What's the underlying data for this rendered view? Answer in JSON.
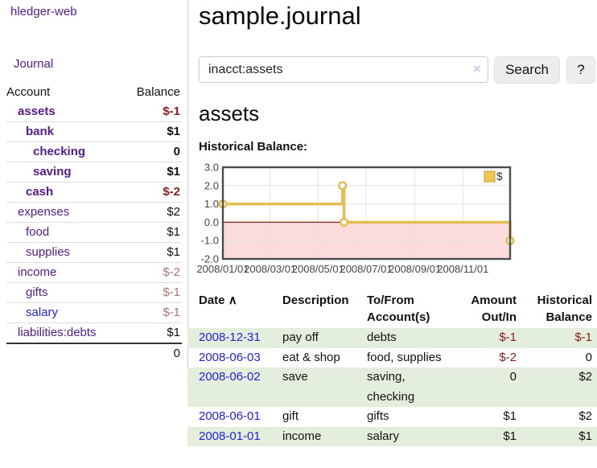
{
  "app": {
    "brand": "hledger-web",
    "nav_journal": "Journal"
  },
  "sidebar": {
    "header": {
      "account": "Account",
      "balance": "Balance"
    },
    "accounts": [
      {
        "name": "assets",
        "depth": 1,
        "balance": "$-1",
        "bold": true,
        "tone": "neg"
      },
      {
        "name": "bank",
        "depth": 2,
        "balance": "$1",
        "bold": true,
        "tone": ""
      },
      {
        "name": "checking",
        "depth": 3,
        "balance": "0",
        "bold": true,
        "tone": ""
      },
      {
        "name": "saving",
        "depth": 3,
        "balance": "$1",
        "bold": true,
        "tone": ""
      },
      {
        "name": "cash",
        "depth": 2,
        "balance": "$-2",
        "bold": true,
        "tone": "neg"
      },
      {
        "name": "expenses",
        "depth": 1,
        "balance": "$2",
        "bold": false,
        "tone": ""
      },
      {
        "name": "food",
        "depth": 2,
        "balance": "$1",
        "bold": false,
        "tone": ""
      },
      {
        "name": "supplies",
        "depth": 2,
        "balance": "$1",
        "bold": false,
        "tone": ""
      },
      {
        "name": "income",
        "depth": 1,
        "balance": "$-2",
        "bold": false,
        "tone": "negfaded"
      },
      {
        "name": "gifts",
        "depth": 2,
        "balance": "$-1",
        "bold": false,
        "tone": "negfaded"
      },
      {
        "name": "salary",
        "depth": 2,
        "balance": "$-1",
        "bold": false,
        "tone": "negfaded",
        "link_blue": true
      },
      {
        "name": "liabilities:debts",
        "depth": 1,
        "balance": "$1",
        "bold": false,
        "tone": ""
      }
    ],
    "total": "0"
  },
  "header": {
    "title": "sample.journal"
  },
  "search": {
    "value": "inacct:assets",
    "clear_icon": "×",
    "button_label": "Search",
    "help_label": "?"
  },
  "account_page": {
    "heading": "assets",
    "chart_title": "Historical Balance:"
  },
  "chart_data": {
    "type": "line",
    "title": "Historical Balance:",
    "step": true,
    "series": [
      {
        "name": "$",
        "color": "#e3bf53",
        "points": [
          {
            "date": "2008-01-01",
            "day": 0,
            "value": 1
          },
          {
            "date": "2008-06-01",
            "day": 152,
            "value": 2
          },
          {
            "date": "2008-06-03",
            "day": 154,
            "value": 0
          },
          {
            "date": "2008-12-31",
            "day": 365,
            "value": -1
          }
        ]
      }
    ],
    "x_ticks": [
      {
        "label": "2008/01/01",
        "day": 0
      },
      {
        "label": "2008/03/01",
        "day": 60
      },
      {
        "label": "2008/05/01",
        "day": 121
      },
      {
        "label": "2008/07/01",
        "day": 182
      },
      {
        "label": "2008/09/01",
        "day": 244
      },
      {
        "label": "2008/11/01",
        "day": 305
      }
    ],
    "y_ticks": [
      "3.0",
      "2.0",
      "1.0",
      "0.0",
      "-1.0",
      "-2.0"
    ],
    "ylim": [
      -2,
      3
    ],
    "x_range_days": 365,
    "grid": true,
    "negative_region_color": "#fbdbdb",
    "zero_line_color": "#a01515",
    "legend": {
      "label": "$",
      "position": "top-right",
      "swatch_color": "#edc94f"
    }
  },
  "register": {
    "columns": {
      "date": "Date",
      "sort_caret": "∧",
      "description": "Description",
      "accounts": "To/From Account(s)",
      "amount": "Amount Out/In",
      "balance": "Historical Balance"
    },
    "rows": [
      {
        "date": "2008-12-31",
        "description": "pay off",
        "accounts": "debts",
        "amount": "$-1",
        "amount_neg": true,
        "balance": "$-1",
        "balance_neg": true,
        "green": true
      },
      {
        "date": "2008-06-03",
        "description": "eat & shop",
        "accounts": "food, supplies",
        "amount": "$-2",
        "amount_neg": true,
        "balance": "0",
        "balance_neg": false,
        "green": false
      },
      {
        "date": "2008-06-02",
        "description": "save",
        "accounts": "saving,\nchecking",
        "amount": "0",
        "amount_neg": false,
        "balance": "$2",
        "balance_neg": false,
        "green": true
      },
      {
        "date": "2008-06-01",
        "description": "gift",
        "accounts": "gifts",
        "amount": "$1",
        "amount_neg": false,
        "balance": "$2",
        "balance_neg": false,
        "green": false
      },
      {
        "date": "2008-01-01",
        "description": "income",
        "accounts": "salary",
        "amount": "$1",
        "amount_neg": false,
        "balance": "$1",
        "balance_neg": false,
        "green": true
      }
    ]
  }
}
